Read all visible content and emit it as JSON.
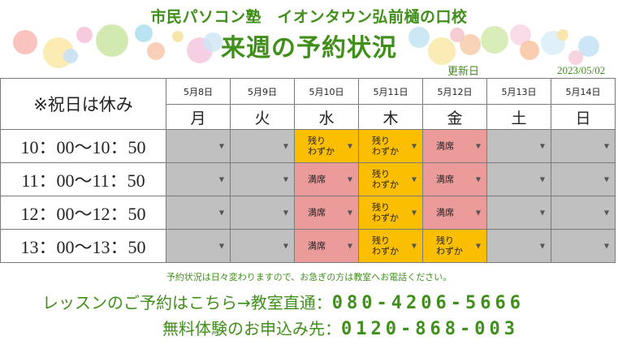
{
  "header": {
    "school_name": "市民パソコン塾　イオンタウン弘前樋の口校",
    "heading": "来週の予約状況",
    "updated_label": "更新日",
    "updated_date": "2023/05/02"
  },
  "schedule": {
    "note": "※祝日は休み",
    "dates": [
      "5月8日",
      "5月9日",
      "5月10日",
      "5月11日",
      "5月12日",
      "5月13日",
      "5月14日"
    ],
    "weekdays": [
      "月",
      "火",
      "水",
      "木",
      "金",
      "土",
      "日"
    ],
    "rows": [
      {
        "time": "10：00〜10：50",
        "slots": [
          {
            "status": "closed",
            "label": ""
          },
          {
            "status": "closed",
            "label": ""
          },
          {
            "status": "few",
            "label": "残り\nわずか"
          },
          {
            "status": "few",
            "label": "残り\nわずか"
          },
          {
            "status": "full",
            "label": "満席"
          },
          {
            "status": "closed",
            "label": ""
          },
          {
            "status": "closed",
            "label": ""
          }
        ]
      },
      {
        "time": "11：00〜11：50",
        "slots": [
          {
            "status": "closed",
            "label": ""
          },
          {
            "status": "closed",
            "label": ""
          },
          {
            "status": "full",
            "label": "満席"
          },
          {
            "status": "few",
            "label": "残り\nわずか"
          },
          {
            "status": "full",
            "label": "満席"
          },
          {
            "status": "closed",
            "label": ""
          },
          {
            "status": "closed",
            "label": ""
          }
        ]
      },
      {
        "time": "12：00〜12：50",
        "slots": [
          {
            "status": "closed",
            "label": ""
          },
          {
            "status": "closed",
            "label": ""
          },
          {
            "status": "full",
            "label": "満席"
          },
          {
            "status": "few",
            "label": "残り\nわずか"
          },
          {
            "status": "full",
            "label": "満席"
          },
          {
            "status": "closed",
            "label": ""
          },
          {
            "status": "closed",
            "label": ""
          }
        ]
      },
      {
        "time": "13：00〜13：50",
        "slots": [
          {
            "status": "closed",
            "label": ""
          },
          {
            "status": "closed",
            "label": ""
          },
          {
            "status": "full",
            "label": "満席"
          },
          {
            "status": "few",
            "label": "残り\nわずか"
          },
          {
            "status": "few",
            "label": "残り\nわずか"
          },
          {
            "status": "closed",
            "label": ""
          },
          {
            "status": "closed",
            "label": ""
          }
        ]
      }
    ],
    "status_colors": {
      "closed": "#c0c0c0",
      "few": "#fbbe00",
      "full": "#ec9b9b"
    }
  },
  "footer": {
    "notice": "予約状況は日々変わりますので、お急ぎの方は教室へお電話ください。",
    "lesson_label": "レッスンのご予約はこちら→教室直通：",
    "lesson_phone": "080-4206-5666",
    "trial_label": "無料体験のお申込み先：",
    "trial_phone": "0120-868-003"
  },
  "theme": {
    "accent": "#3f8f1a"
  }
}
